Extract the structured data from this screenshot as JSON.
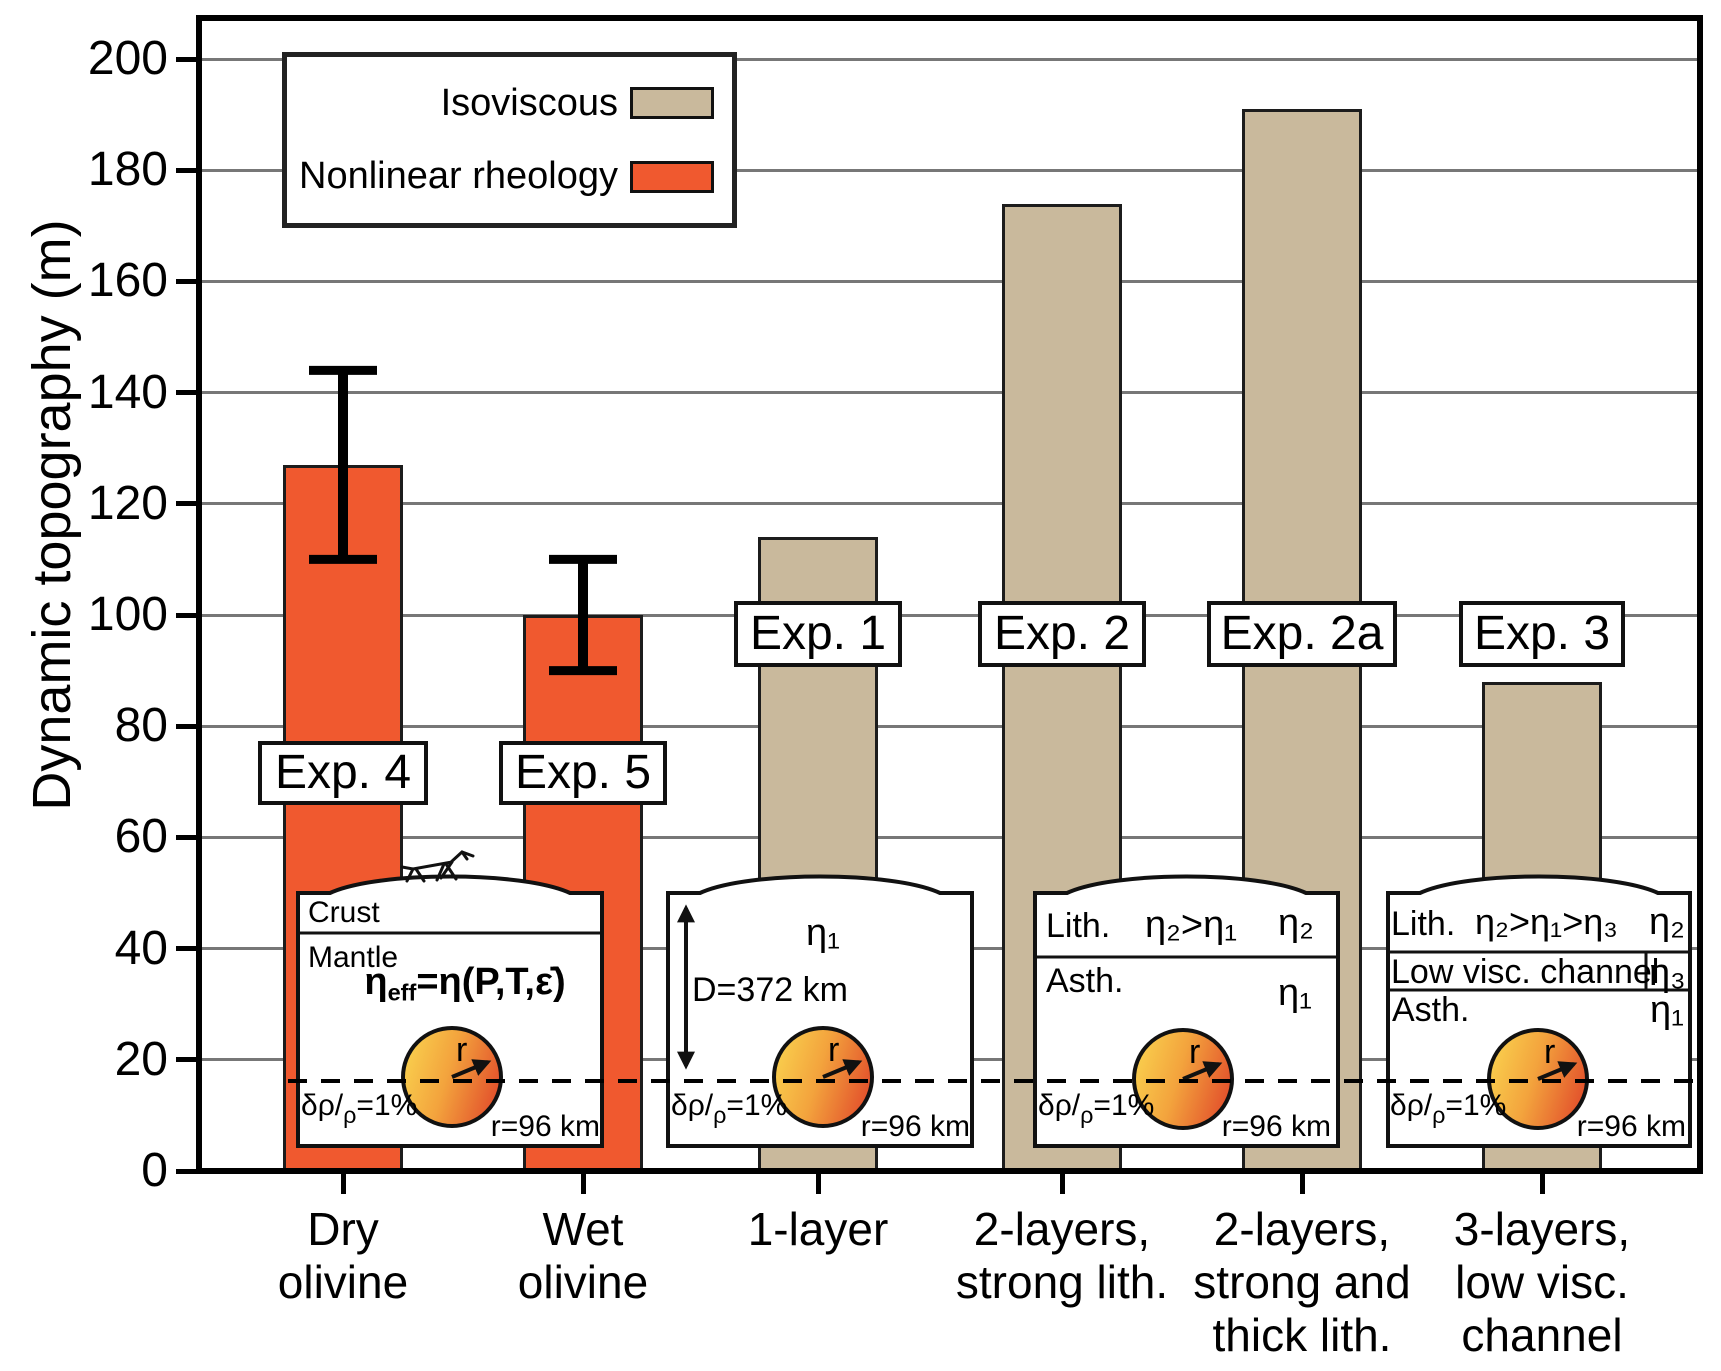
{
  "chart_data": {
    "type": "bar",
    "title": "",
    "ylabel": "Dynamic topography (m)",
    "ylim": [
      0,
      207
    ],
    "yticks": [
      0,
      20,
      40,
      60,
      80,
      100,
      120,
      140,
      160,
      180,
      200
    ],
    "grid": true,
    "categories": [
      "Dry\nolivine",
      "Wet\nolivine",
      "1-layer",
      "2-layers,\nstrong lith.",
      "2-layers,\nstrong and\nthick lith.",
      "3-layers,\nlow visc.\nchannel"
    ],
    "values": [
      127,
      100,
      114,
      174,
      191,
      88
    ],
    "bar_labels": [
      "Exp. 4",
      "Exp. 5",
      "Exp. 1",
      "Exp. 2",
      "Exp. 2a",
      "Exp. 3"
    ],
    "bar_series": [
      "Nonlinear rheology",
      "Nonlinear rheology",
      "Isoviscous",
      "Isoviscous",
      "Isoviscous",
      "Isoviscous"
    ],
    "error_bars": [
      {
        "bar_index": 0,
        "low": 110,
        "high": 144
      },
      {
        "bar_index": 1,
        "low": 90,
        "high": 110
      }
    ],
    "legend": {
      "position": "top-left",
      "entries": [
        {
          "label": "Isoviscous",
          "color": "#C9B99C"
        },
        {
          "label": "Nonlinear rheology",
          "color": "#F0592F"
        }
      ]
    }
  },
  "insets": {
    "shared": {
      "density_prefix": "δρ/",
      "density_sub": "ρ",
      "density_suffix": "=1%",
      "sphere_radius": "r=96 km",
      "radius_arrow": "r"
    },
    "nonlinear": {
      "layer_top": "Crust",
      "layer_bottom": "Mantle",
      "equation_base": "η",
      "equation_sub": "eff",
      "equation_rest": "=η(P,T,ε̇)"
    },
    "one_layer": {
      "viscosity": "η₁",
      "depth": "D=372 km"
    },
    "two_layer": {
      "layer1": "Lith.",
      "relation": "η₂>η₁",
      "layer1_viscosity": "η₂",
      "layer2": "Asth.",
      "layer2_viscosity": "η₁"
    },
    "three_layer": {
      "layer1": "Lith.",
      "relation": "η₂>η₁>η₃",
      "layer1_viscosity": "η₂",
      "layer2": "Low visc. channel",
      "layer2_viscosity": "η₃",
      "layer3": "Asth.",
      "layer3_viscosity": "η₁"
    }
  }
}
